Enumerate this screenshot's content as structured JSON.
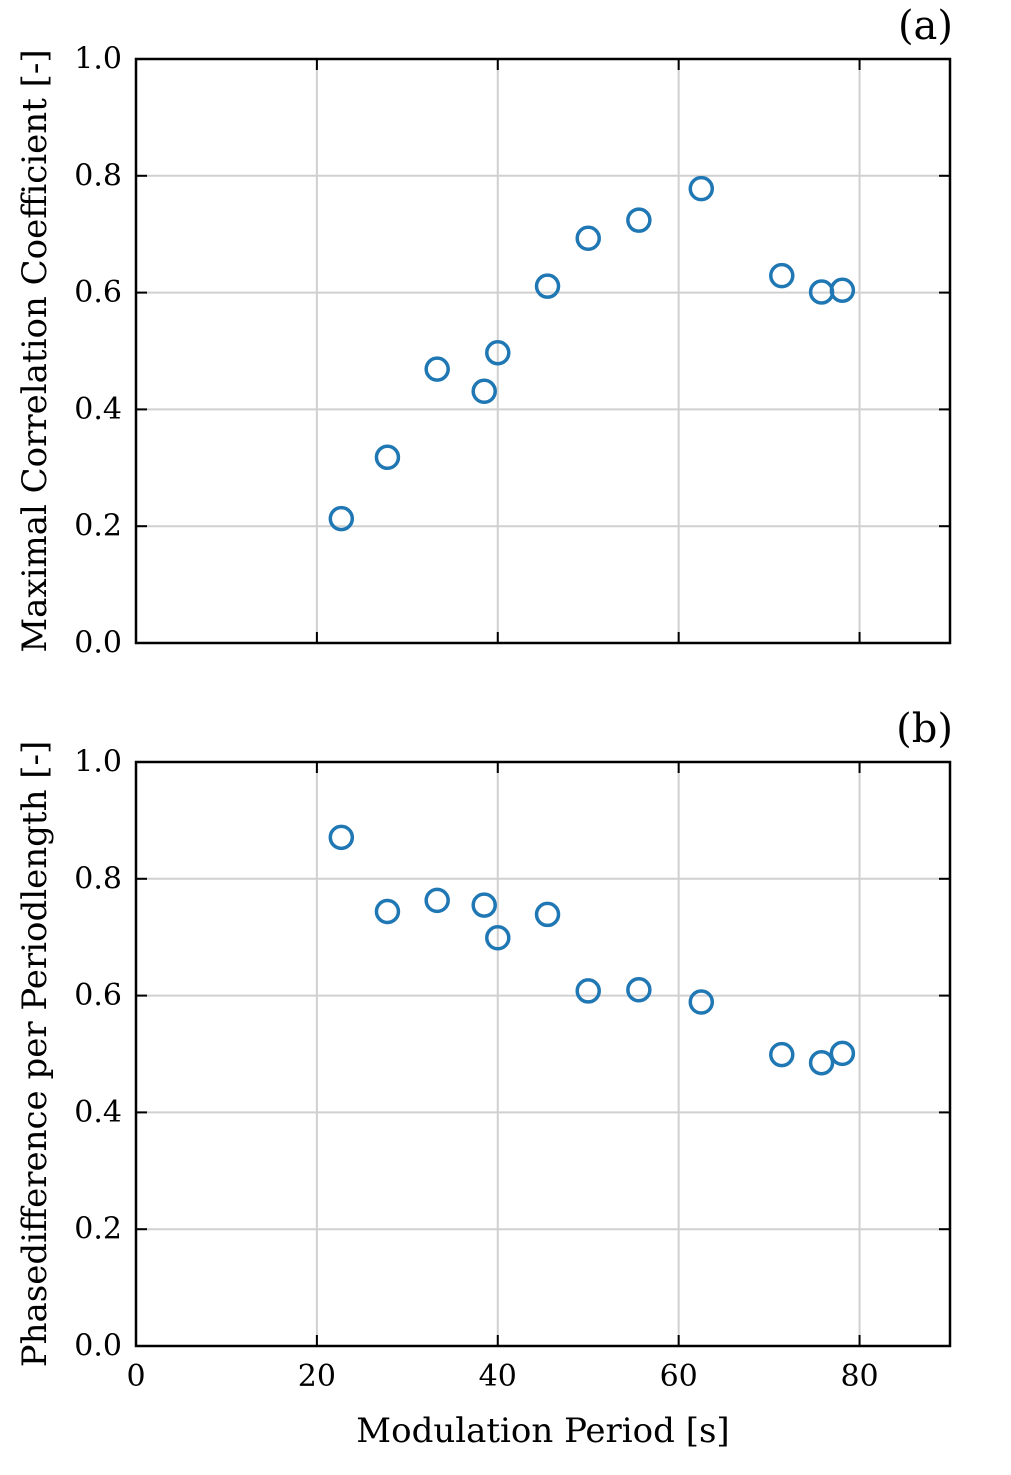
{
  "chart_data": [
    {
      "type": "scatter",
      "panel_label": "(a)",
      "xlabel": "",
      "ylabel": "Maximal Correlation Coefficient [-]",
      "xlim": [
        0,
        90
      ],
      "ylim": [
        0.0,
        1.0
      ],
      "xticks": [
        0,
        20,
        40,
        60,
        80
      ],
      "yticks": [
        0.0,
        0.2,
        0.4,
        0.6,
        0.8,
        1.0
      ],
      "ytick_labels": [
        "0.0",
        "0.2",
        "0.4",
        "0.6",
        "0.8",
        "1.0"
      ],
      "xtick_labels_shown": false,
      "grid": true,
      "marker": "open-circle",
      "marker_color": "#1f77b4",
      "x": [
        22.7,
        27.8,
        33.3,
        38.5,
        40.0,
        45.5,
        50.0,
        55.6,
        62.5,
        71.4,
        75.8,
        78.1
      ],
      "y": [
        0.213,
        0.318,
        0.469,
        0.431,
        0.497,
        0.611,
        0.693,
        0.724,
        0.778,
        0.629,
        0.601,
        0.604
      ]
    },
    {
      "type": "scatter",
      "panel_label": "(b)",
      "xlabel": "Modulation Period [s]",
      "ylabel": "Phasedifference per Periodlength [-]",
      "xlim": [
        0,
        90
      ],
      "ylim": [
        0.0,
        1.0
      ],
      "xticks": [
        0,
        20,
        40,
        60,
        80
      ],
      "xtick_labels": [
        "0",
        "20",
        "40",
        "60",
        "80"
      ],
      "yticks": [
        0.0,
        0.2,
        0.4,
        0.6,
        0.8,
        1.0
      ],
      "ytick_labels": [
        "0.0",
        "0.2",
        "0.4",
        "0.6",
        "0.8",
        "1.0"
      ],
      "grid": true,
      "marker": "open-circle",
      "marker_color": "#1f77b4",
      "x": [
        22.7,
        27.8,
        33.3,
        38.5,
        40.0,
        45.5,
        50.0,
        55.6,
        62.5,
        71.4,
        75.8,
        78.1
      ],
      "y": [
        0.871,
        0.744,
        0.763,
        0.755,
        0.699,
        0.739,
        0.608,
        0.61,
        0.589,
        0.499,
        0.485,
        0.501
      ]
    }
  ]
}
